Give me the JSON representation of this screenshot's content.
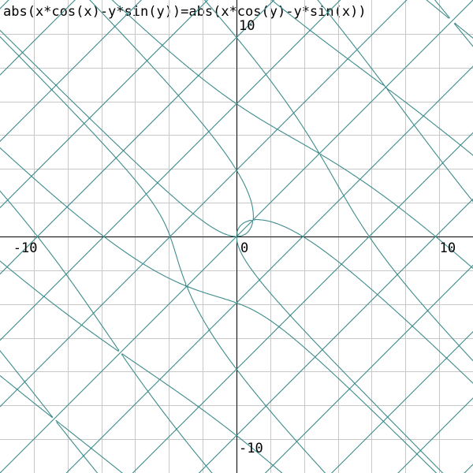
{
  "equation": "abs(x*cos(x)-y*sin(y))=abs(x*cos(y)-y*sin(x))",
  "chart_data": {
    "type": "line",
    "kind": "implicit",
    "title": "abs(x*cos(x)-y*sin(y))=abs(x*cos(y)-y*sin(x))",
    "xlim": [
      -11.2,
      11.2
    ],
    "ylim": [
      -11.2,
      11.2
    ],
    "grid": true,
    "grid_step": 1.6,
    "x_ticks": [
      {
        "value": -10,
        "label": "-10"
      },
      {
        "value": 0,
        "label": "0"
      },
      {
        "value": 10,
        "label": "10"
      }
    ],
    "y_ticks": [
      {
        "value": 10,
        "label": "10"
      },
      {
        "value": -10,
        "label": "-10"
      }
    ],
    "line_color": "#3f8c8c",
    "axis_color": "#000000",
    "grid_color": "#c8c8c8",
    "background": "#ffffff"
  }
}
